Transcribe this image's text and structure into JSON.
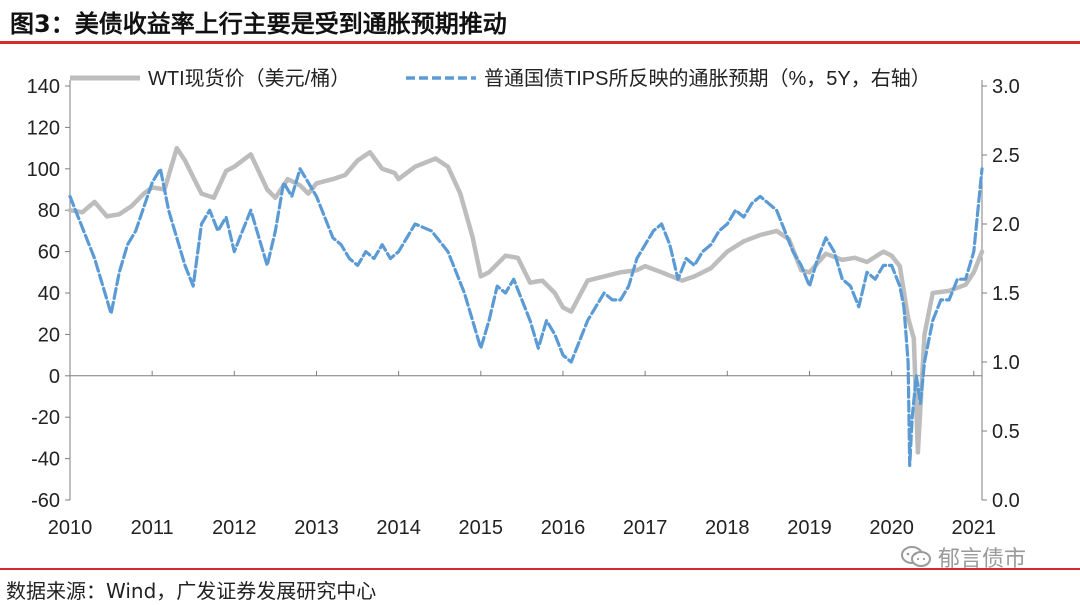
{
  "title": "图3：美债收益率上行主要是受到通胀预期推动",
  "source": "数据来源：Wind，广发证券发展研究中心",
  "watermark": {
    "text": "郁言债市",
    "icon": "wechat-icon"
  },
  "colors": {
    "wti": "#bdbdbd",
    "tips": "#5b9bd5",
    "accent": "#d62b2b"
  },
  "chart_data": {
    "type": "line",
    "title": "",
    "xlabel": "",
    "ylabel": "",
    "legend_placement": "top",
    "grid": false,
    "x_ticks": [
      "2010",
      "2011",
      "2012",
      "2013",
      "2014",
      "2015",
      "2016",
      "2017",
      "2018",
      "2019",
      "2020",
      "2021"
    ],
    "x_range": [
      2010.0,
      2021.1
    ],
    "y_left": {
      "range": [
        -60,
        140
      ],
      "ticks": [
        "140",
        "120",
        "100",
        "80",
        "60",
        "40",
        "20",
        "0",
        "-20",
        "-40",
        "-60"
      ]
    },
    "y_right": {
      "range": [
        0.0,
        3.0
      ],
      "ticks": [
        "3.0",
        "2.5",
        "2.0",
        "1.5",
        "1.0",
        "0.5",
        "0.0"
      ]
    },
    "series": [
      {
        "name": "WTI现货价（美元/桶）",
        "axis": "left",
        "style": "solid",
        "x": [
          2010.0,
          2010.15,
          2010.3,
          2010.45,
          2010.6,
          2010.75,
          2010.9,
          2011.0,
          2011.15,
          2011.3,
          2011.4,
          2011.5,
          2011.6,
          2011.75,
          2011.9,
          2012.0,
          2012.2,
          2012.4,
          2012.5,
          2012.65,
          2012.8,
          2012.9,
          2013.0,
          2013.2,
          2013.35,
          2013.5,
          2013.65,
          2013.8,
          2013.95,
          2014.0,
          2014.2,
          2014.45,
          2014.6,
          2014.75,
          2014.9,
          2015.0,
          2015.1,
          2015.3,
          2015.45,
          2015.6,
          2015.75,
          2015.9,
          2016.0,
          2016.1,
          2016.3,
          2016.5,
          2016.7,
          2016.9,
          2017.0,
          2017.2,
          2017.45,
          2017.6,
          2017.8,
          2018.0,
          2018.2,
          2018.4,
          2018.6,
          2018.75,
          2018.9,
          2019.0,
          2019.2,
          2019.4,
          2019.55,
          2019.7,
          2019.9,
          2020.0,
          2020.1,
          2020.2,
          2020.27,
          2020.32,
          2020.4,
          2020.5,
          2020.7,
          2020.9,
          2021.0,
          2021.1
        ],
        "values": [
          80,
          79,
          84,
          77,
          78,
          82,
          88,
          91,
          90,
          110,
          104,
          96,
          88,
          86,
          99,
          101,
          107,
          90,
          86,
          95,
          92,
          88,
          93,
          95,
          97,
          104,
          108,
          100,
          98,
          95,
          101,
          105,
          101,
          88,
          67,
          48,
          50,
          58,
          57,
          45,
          46,
          40,
          33,
          31,
          46,
          48,
          50,
          51,
          53,
          50,
          46,
          48,
          52,
          60,
          65,
          68,
          70,
          66,
          51,
          50,
          59,
          56,
          57,
          55,
          60,
          58,
          53,
          28,
          18,
          -37,
          20,
          40,
          41,
          44,
          50,
          60
        ]
      },
      {
        "name": "普通国债TIPS所反映的通胀预期（%，5Y，右轴）",
        "axis": "right",
        "style": "dashed",
        "x": [
          2010.0,
          2010.1,
          2010.2,
          2010.3,
          2010.4,
          2010.5,
          2010.6,
          2010.7,
          2010.8,
          2011.0,
          2011.1,
          2011.2,
          2011.3,
          2011.4,
          2011.5,
          2011.6,
          2011.7,
          2011.8,
          2011.9,
          2012.0,
          2012.1,
          2012.2,
          2012.3,
          2012.4,
          2012.5,
          2012.6,
          2012.7,
          2012.8,
          2012.9,
          2013.0,
          2013.1,
          2013.2,
          2013.3,
          2013.4,
          2013.5,
          2013.6,
          2013.7,
          2013.8,
          2013.9,
          2014.0,
          2014.2,
          2014.4,
          2014.6,
          2014.7,
          2014.8,
          2014.9,
          2015.0,
          2015.1,
          2015.2,
          2015.3,
          2015.4,
          2015.5,
          2015.6,
          2015.7,
          2015.8,
          2015.9,
          2016.0,
          2016.1,
          2016.2,
          2016.3,
          2016.4,
          2016.5,
          2016.6,
          2016.7,
          2016.8,
          2016.9,
          2017.0,
          2017.1,
          2017.2,
          2017.3,
          2017.4,
          2017.5,
          2017.6,
          2017.7,
          2017.8,
          2017.9,
          2018.0,
          2018.1,
          2018.2,
          2018.3,
          2018.4,
          2018.5,
          2018.6,
          2018.7,
          2018.8,
          2018.9,
          2019.0,
          2019.1,
          2019.2,
          2019.3,
          2019.4,
          2019.5,
          2019.6,
          2019.7,
          2019.8,
          2019.9,
          2020.0,
          2020.1,
          2020.15,
          2020.2,
          2020.22,
          2020.25,
          2020.3,
          2020.35,
          2020.4,
          2020.5,
          2020.6,
          2020.7,
          2020.8,
          2020.9,
          2021.0,
          2021.1
        ],
        "values": [
          2.2,
          2.05,
          1.9,
          1.75,
          1.55,
          1.35,
          1.65,
          1.85,
          1.95,
          2.3,
          2.4,
          2.1,
          1.9,
          1.7,
          1.55,
          2.0,
          2.1,
          1.95,
          2.05,
          1.8,
          1.95,
          2.1,
          1.9,
          1.7,
          1.95,
          2.3,
          2.2,
          2.4,
          2.3,
          2.2,
          2.05,
          1.9,
          1.85,
          1.75,
          1.7,
          1.8,
          1.75,
          1.85,
          1.75,
          1.8,
          2.0,
          1.95,
          1.8,
          1.65,
          1.5,
          1.3,
          1.1,
          1.3,
          1.55,
          1.5,
          1.6,
          1.45,
          1.3,
          1.1,
          1.3,
          1.2,
          1.05,
          1.0,
          1.15,
          1.3,
          1.4,
          1.5,
          1.45,
          1.45,
          1.55,
          1.75,
          1.85,
          1.95,
          2.0,
          1.85,
          1.6,
          1.75,
          1.7,
          1.8,
          1.85,
          1.95,
          2.0,
          2.1,
          2.05,
          2.15,
          2.2,
          2.15,
          2.1,
          1.95,
          1.8,
          1.7,
          1.55,
          1.75,
          1.9,
          1.8,
          1.6,
          1.55,
          1.4,
          1.65,
          1.6,
          1.7,
          1.7,
          1.55,
          1.4,
          1.0,
          0.25,
          0.6,
          0.9,
          0.7,
          1.0,
          1.3,
          1.45,
          1.45,
          1.6,
          1.6,
          1.8,
          2.4
        ]
      }
    ]
  }
}
